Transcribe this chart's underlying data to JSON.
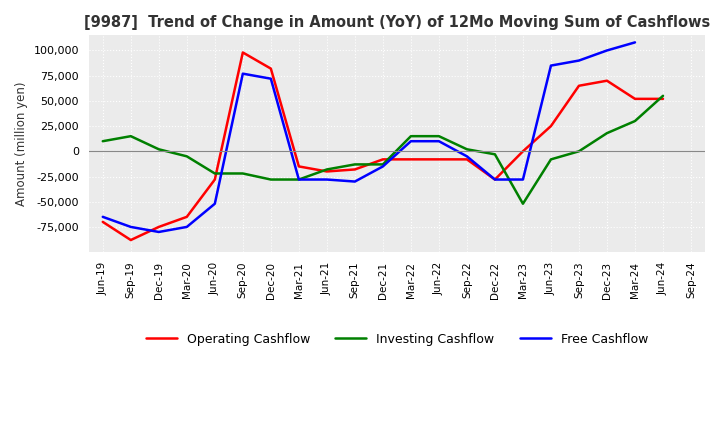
{
  "title": "[9987]  Trend of Change in Amount (YoY) of 12Mo Moving Sum of Cashflows",
  "ylabel": "Amount (million yen)",
  "xlabels": [
    "Jun-19",
    "Sep-19",
    "Dec-19",
    "Mar-20",
    "Jun-20",
    "Sep-20",
    "Dec-20",
    "Mar-21",
    "Jun-21",
    "Sep-21",
    "Dec-21",
    "Mar-22",
    "Jun-22",
    "Sep-22",
    "Dec-22",
    "Mar-23",
    "Jun-23",
    "Sep-23",
    "Dec-23",
    "Mar-24",
    "Jun-24",
    "Sep-24"
  ],
  "ylim": [
    -100000,
    115000
  ],
  "yticks": [
    -75000,
    -50000,
    -25000,
    0,
    25000,
    50000,
    75000,
    100000
  ],
  "operating": [
    -70000,
    -88000,
    -75000,
    -65000,
    -28000,
    98000,
    82000,
    -15000,
    -20000,
    -18000,
    -8000,
    -8000,
    -8000,
    -8000,
    -28000,
    0,
    25000,
    65000,
    70000,
    52000,
    52000,
    null
  ],
  "investing": [
    10000,
    15000,
    2000,
    -5000,
    -22000,
    -22000,
    -28000,
    -28000,
    -18000,
    -13000,
    -13000,
    15000,
    15000,
    2000,
    -3000,
    -52000,
    -8000,
    0,
    18000,
    30000,
    55000,
    null
  ],
  "free": [
    -65000,
    -75000,
    -80000,
    -75000,
    -52000,
    77000,
    72000,
    -28000,
    -28000,
    -30000,
    -15000,
    10000,
    10000,
    -5000,
    -28000,
    -28000,
    85000,
    90000,
    100000,
    108000,
    null,
    null
  ],
  "line_colors": {
    "operating": "#FF0000",
    "investing": "#008000",
    "free": "#0000FF"
  },
  "bg_color": "#FFFFFF",
  "plot_bg_color": "#EBEBEB",
  "grid_color": "#FFFFFF",
  "grid_style": "dotted",
  "title_color": "#333333",
  "legend_labels": [
    "Operating Cashflow",
    "Investing Cashflow",
    "Free Cashflow"
  ]
}
